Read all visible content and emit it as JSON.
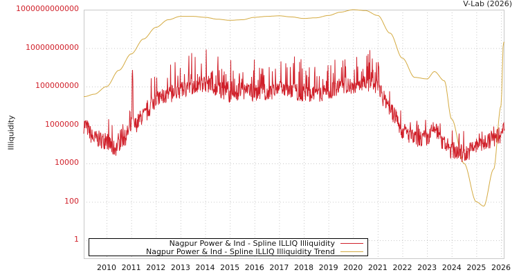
{
  "header": {
    "credit": "V-Lab (2026)"
  },
  "axes": {
    "ylabel": "Illiquidity",
    "yticks": [
      "1000000000000",
      "10000000000",
      "100000000",
      "1000000",
      "10000",
      "100",
      "1"
    ],
    "xticks": [
      "2010",
      "2011",
      "2012",
      "2013",
      "2014",
      "2015",
      "2016",
      "2017",
      "2018",
      "2019",
      "2020",
      "2021",
      "2022",
      "2023",
      "2024",
      "2025",
      "2026"
    ]
  },
  "legend": {
    "items": [
      {
        "label": "Nagpur Power & Ind - Spline ILLIQ Illiquidity",
        "color": "#d0202a"
      },
      {
        "label": "Nagpur Power & Ind - Spline ILLIQ Illiquidity Trend",
        "color": "#d4aa40"
      }
    ]
  },
  "colors": {
    "series": "#d0202a",
    "trend": "#d4aa40",
    "grid": "#c8c8c8",
    "frame": "#c8c8c8",
    "tick_text": "#d0202a"
  },
  "chart_data": {
    "type": "line",
    "title": "",
    "xlabel": "",
    "ylabel": "Illiquidity",
    "yscale": "log",
    "ylim": [
      0.3,
      1000000000000
    ],
    "xlim": [
      2009.1,
      2026.1
    ],
    "grid": true,
    "legend_position": "bottom-left inside",
    "credit": "V-Lab (2026)",
    "series": [
      {
        "name": "Nagpur Power & Ind - Spline ILLIQ Illiquidity",
        "color": "#d0202a",
        "x": [
          2009.1,
          2009.5,
          2010.0,
          2010.3,
          2010.7,
          2011.0,
          2011.05,
          2011.1,
          2011.5,
          2012.0,
          2012.3,
          2013.0,
          2013.5,
          2014.0,
          2014.5,
          2015.0,
          2015.5,
          2016.0,
          2016.5,
          2017.0,
          2017.5,
          2018.0,
          2018.5,
          2019.0,
          2019.5,
          2020.0,
          2020.5,
          2021.0,
          2021.3,
          2021.7,
          2022.0,
          2022.5,
          2023.0,
          2023.3,
          2023.7,
          2024.0,
          2024.5,
          2025.0,
          2025.5,
          2026.0,
          2026.1
        ],
        "values": [
          1000000,
          200000,
          150000,
          60000,
          200000,
          700000,
          20000000,
          900000,
          3000000,
          20000000,
          30000000,
          60000000,
          100000000,
          150000000,
          80000000,
          40000000,
          60000000,
          50000000,
          50000000,
          70000000,
          60000000,
          45000000,
          40000000,
          60000000,
          100000000,
          120000000,
          150000000,
          90000000,
          20000000,
          3000000,
          500000,
          200000,
          200000,
          600000,
          100000,
          50000,
          30000,
          80000,
          150000,
          300000,
          800000
        ]
      },
      {
        "name": "Nagpur Power & Ind - Spline ILLIQ Illiquidity Trend",
        "color": "#d4aa40",
        "x": [
          2009.1,
          2009.5,
          2010.0,
          2010.5,
          2011.0,
          2011.5,
          2012.0,
          2012.5,
          2013.0,
          2013.5,
          2014.0,
          2014.5,
          2015.0,
          2015.5,
          2016.0,
          2016.5,
          2017.0,
          2017.5,
          2018.0,
          2018.5,
          2019.0,
          2019.5,
          2020.0,
          2020.5,
          2021.0,
          2021.5,
          2022.0,
          2022.5,
          2023.0,
          2023.3,
          2023.7,
          2024.0,
          2024.5,
          2025.0,
          2025.3,
          2025.7,
          2026.0,
          2026.1
        ],
        "values": [
          30000000,
          40000000,
          100000000,
          700000000,
          5000000000,
          30000000000,
          120000000000,
          300000000000,
          450000000000,
          450000000000,
          400000000000,
          320000000000,
          280000000000,
          300000000000,
          400000000000,
          450000000000,
          480000000000,
          420000000000,
          350000000000,
          380000000000,
          500000000000,
          750000000000,
          1000000000000,
          900000000000,
          500000000000,
          60000000000,
          3000000000,
          300000000,
          250000000,
          600000000,
          200000000,
          2000000,
          10000,
          100,
          60,
          5000,
          10000000,
          20000000000
        ]
      }
    ]
  }
}
